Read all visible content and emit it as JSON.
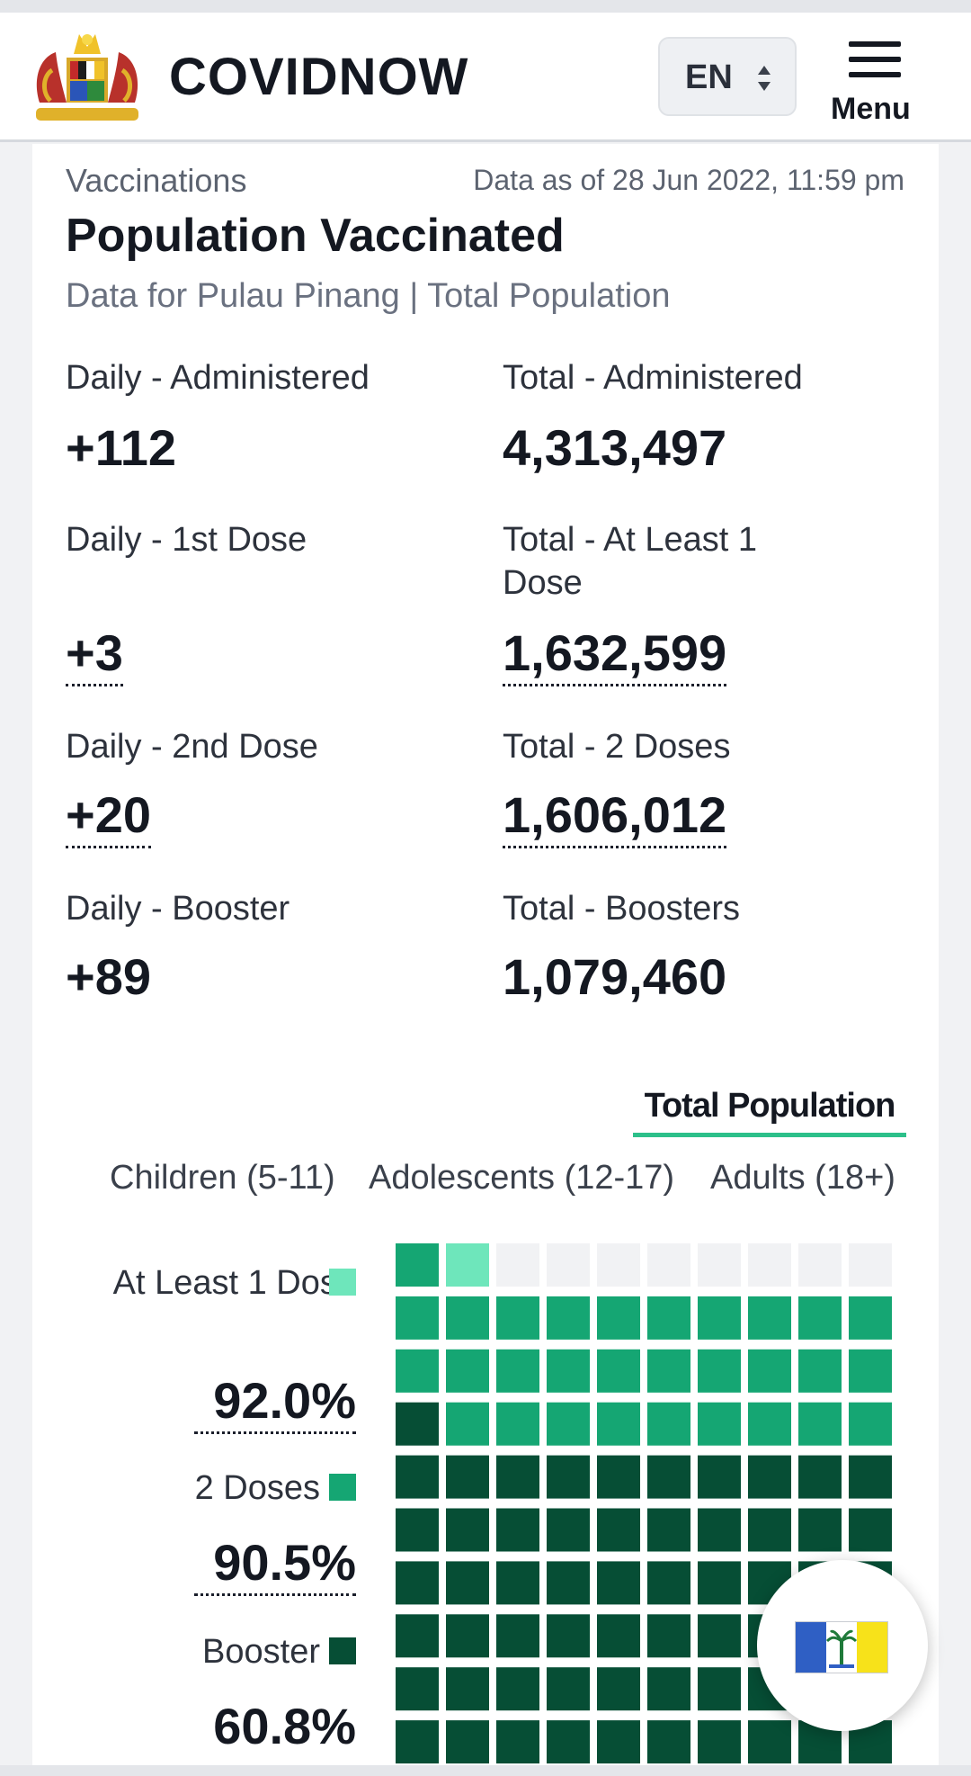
{
  "header": {
    "brand": "COVIDNOW",
    "lang": "EN",
    "menu_label": "Menu",
    "icons": [
      "malaysia-crest-logo",
      "updown-caret-icon",
      "hamburger-icon"
    ]
  },
  "section": {
    "kicker": "Vaccinations",
    "as_of": "Data as of 28 Jun 2022, 11:59 pm",
    "title": "Population Vaccinated",
    "subtitle": "Data for Pulau Pinang | Total Population"
  },
  "stats": [
    {
      "label": "Daily - Administered",
      "value": "+112"
    },
    {
      "label": "Total - Administered",
      "value": "4,313,497"
    },
    {
      "label": "Daily - 1st Dose",
      "value": "+3"
    },
    {
      "label": "Total - At Least 1 Dose",
      "value": "1,632,599"
    },
    {
      "label": "Daily - 2nd Dose",
      "value": "+20"
    },
    {
      "label": "Total - 2 Doses",
      "value": "1,606,012"
    },
    {
      "label": "Daily - Booster",
      "value": "+89"
    },
    {
      "label": "Total - Boosters",
      "value": "1,079,460"
    }
  ],
  "tabs": {
    "population": "Total Population",
    "age_groups": [
      "Children (5-11)",
      "Adolescents (12-17)",
      "Adults (18+)"
    ]
  },
  "chart_data": {
    "type": "waffle",
    "grid": "10x10",
    "series": [
      {
        "name": "At Least 1 Dose",
        "value": 92.0,
        "label": "92.0%",
        "color": "#6ee6bb"
      },
      {
        "name": "2 Doses",
        "value": 90.5,
        "label": "90.5%",
        "color": "#15a673"
      },
      {
        "name": "Booster",
        "value": 60.8,
        "label": "60.8%",
        "color": "#064e35"
      }
    ],
    "empty_color": "#f1f2f4"
  },
  "fab": {
    "icon": "pulau-pinang-flag-icon"
  }
}
